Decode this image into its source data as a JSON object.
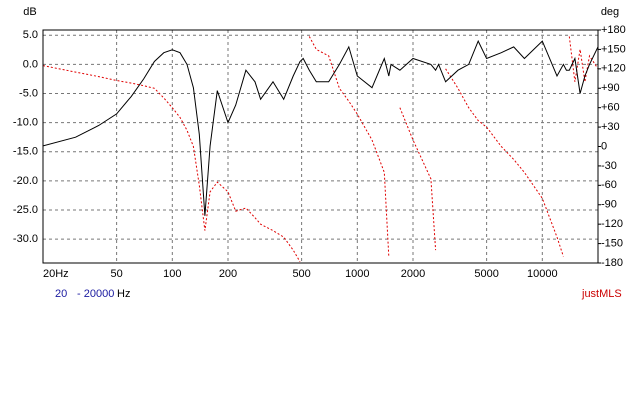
{
  "chart_data": {
    "type": "line",
    "ylabel": "dB",
    "y2label": "deg",
    "annotations": [
      "20",
      "- 20000",
      "Hz",
      "justMLS"
    ],
    "log_x": true,
    "grid": true,
    "xlim": [
      20,
      20000
    ],
    "xticks": [
      {
        "value": 20,
        "label": "20Hz"
      },
      50,
      100,
      200,
      500,
      1000,
      2000,
      5000,
      10000
    ],
    "ylim": [
      -34.1,
      5.9
    ],
    "yticks": [
      {
        "value": 5,
        "label": "5.0"
      },
      {
        "value": 0,
        "label": "0.0"
      },
      {
        "value": -5,
        "label": "-5.0"
      },
      {
        "value": -10,
        "label": "-10.0"
      },
      {
        "value": -15,
        "label": "-15.0"
      },
      {
        "value": -20,
        "label": "-20.0"
      },
      {
        "value": -25,
        "label": "-25.0"
      },
      {
        "value": -30,
        "label": "-30.0"
      }
    ],
    "y2lim": [
      -180,
      180
    ],
    "y2ticks": [
      {
        "value": 180,
        "label": "+180"
      },
      {
        "value": 150,
        "label": "+150"
      },
      {
        "value": 120,
        "label": "+120"
      },
      {
        "value": 90,
        "label": "+90"
      },
      {
        "value": 60,
        "label": "+60"
      },
      {
        "value": 30,
        "label": "+30"
      },
      0,
      -30,
      -60,
      -90,
      -120,
      -150,
      -180
    ],
    "x": [
      20,
      30,
      40,
      50,
      60,
      70,
      80,
      90,
      100,
      110,
      120,
      130,
      140,
      150,
      160,
      175,
      200,
      220,
      250,
      280,
      300,
      350,
      400,
      450,
      490,
      510,
      550,
      600,
      700,
      800,
      900,
      1000,
      1200,
      1400,
      1480,
      1520,
      1700,
      2000,
      2500,
      2650,
      2750,
      3000,
      3500,
      4000,
      4500,
      5000,
      6000,
      7000,
      8000,
      10000,
      12000,
      13000,
      13500,
      14000,
      15000,
      16000,
      17000,
      18000,
      20000
    ],
    "series": [
      {
        "color": "#000000",
        "dash": false,
        "values": [
          -14,
          -12.5,
          -10.5,
          -8.5,
          -5.5,
          -2.5,
          0.5,
          2,
          2.5,
          2,
          0,
          -4,
          -12,
          -26,
          -14,
          -4.5,
          -10,
          -7,
          -1,
          -3,
          -6,
          -3,
          -6,
          -2,
          0.5,
          1,
          -1,
          -3,
          -3,
          0,
          3,
          -2,
          -4,
          1,
          -2,
          0,
          -1,
          1,
          0,
          -1,
          0,
          -3,
          -1,
          0,
          4,
          1,
          2,
          3,
          1,
          4,
          -2,
          0,
          -1,
          -1,
          1,
          -5,
          -2,
          0,
          3
        ]
      },
      {
        "color": "#e00000",
        "dash": true,
        "axis": "y2",
        "values": [
          125,
          115,
          108,
          102,
          98,
          94,
          90,
          75,
          60,
          45,
          25,
          0,
          -60,
          -130,
          -70,
          -55,
          -70,
          -100,
          -95,
          -110,
          -120,
          -130,
          -140,
          -160,
          -178,
          null,
          170,
          150,
          140,
          90,
          70,
          50,
          10,
          -40,
          -170,
          null,
          60,
          10,
          -50,
          -160,
          null,
          120,
          90,
          60,
          40,
          30,
          0,
          -20,
          -40,
          -80,
          -140,
          -170,
          null,
          170,
          100,
          150,
          100,
          140,
          120
        ]
      }
    ]
  }
}
